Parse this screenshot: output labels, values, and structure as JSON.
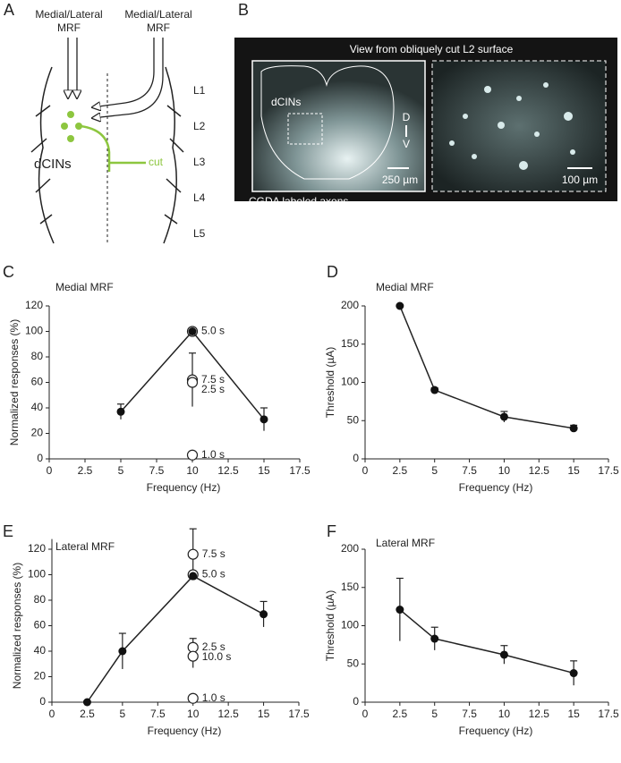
{
  "panel_a": {
    "label": "A",
    "source_left": [
      "Medial/Lateral",
      "MRF"
    ],
    "source_right": [
      "Medial/Lateral",
      "MRF"
    ],
    "levels": [
      "L1",
      "L2",
      "L3",
      "L4",
      "L5"
    ],
    "cells": "dCINs",
    "cut": "cut"
  },
  "panel_b": {
    "label": "B",
    "title": "View from obliquely cut L2 surface",
    "cells": "dCINs",
    "dorsal": "D",
    "ventral": "V",
    "scale_left": "250 µm",
    "scale_right": "100 µm",
    "caption": "CGDA labeled axons"
  },
  "chart_data": [
    {
      "type": "line",
      "label": "C",
      "title": "Medial MRF",
      "xlabel": "Frequency (Hz)",
      "ylabel": "Normalized responses (%)",
      "x": [
        5,
        10,
        15
      ],
      "values": [
        37,
        100,
        31
      ],
      "errors": [
        6,
        0,
        9
      ],
      "points": {
        "x": [
          10,
          10,
          10,
          10
        ],
        "values": [
          100,
          62,
          60,
          3
        ],
        "errors": [
          0,
          21,
          0,
          0
        ],
        "labels": [
          "5.0 s",
          "7.5 s",
          "2.5 s",
          "1.0 s"
        ]
      },
      "xlim": [
        0,
        17.5
      ],
      "xticks": [
        0,
        2.5,
        5,
        7.5,
        10,
        12.5,
        15,
        17.5
      ],
      "ylim": [
        0,
        120
      ],
      "yticks": [
        0,
        20,
        40,
        60,
        80,
        100,
        120
      ]
    },
    {
      "type": "line",
      "label": "D",
      "title": "Medial MRF",
      "xlabel": "Frequency (Hz)",
      "ylabel": "Threshold (µA)",
      "x": [
        2.5,
        5,
        10,
        15
      ],
      "values": [
        200,
        90,
        55,
        40
      ],
      "errors": [
        0,
        3,
        7,
        4
      ],
      "xlim": [
        0,
        17.5
      ],
      "xticks": [
        0,
        2.5,
        5,
        7.5,
        10,
        12.5,
        15,
        17.5
      ],
      "ylim": [
        0,
        200
      ],
      "yticks": [
        0,
        50,
        100,
        150,
        200
      ]
    },
    {
      "type": "line",
      "label": "E",
      "title": "Lateral MRF",
      "xlabel": "Frequency (Hz)",
      "ylabel": "Normalized responses (%)",
      "x": [
        2.5,
        5,
        10,
        15
      ],
      "values": [
        0,
        40,
        99,
        69
      ],
      "errors": [
        0,
        14,
        0,
        10
      ],
      "points": {
        "x": [
          10,
          10,
          10,
          10,
          10
        ],
        "values": [
          116,
          100,
          43,
          36,
          3
        ],
        "errors": [
          20,
          0,
          7,
          9,
          0
        ],
        "labels": [
          "7.5 s",
          "5.0 s",
          "2.5 s",
          "10.0 s",
          "1.0 s"
        ]
      },
      "xlim": [
        0,
        17.5
      ],
      "xticks": [
        0,
        2.5,
        5,
        7.5,
        10,
        12.5,
        15,
        17.5
      ],
      "ylim": [
        0,
        128
      ],
      "yticks": [
        0,
        20,
        40,
        60,
        80,
        100,
        120
      ]
    },
    {
      "type": "line",
      "label": "F",
      "title": "Lateral MRF",
      "xlabel": "Frequency (Hz)",
      "ylabel": "Threshold (µA)",
      "x": [
        2.5,
        5,
        10,
        15
      ],
      "values": [
        121,
        83,
        62,
        38
      ],
      "errors": [
        41,
        15,
        12,
        16
      ],
      "xlim": [
        0,
        17.5
      ],
      "xticks": [
        0,
        2.5,
        5,
        7.5,
        10,
        12.5,
        15,
        17.5
      ],
      "ylim": [
        0,
        200
      ],
      "yticks": [
        0,
        50,
        100,
        150,
        200
      ]
    }
  ]
}
